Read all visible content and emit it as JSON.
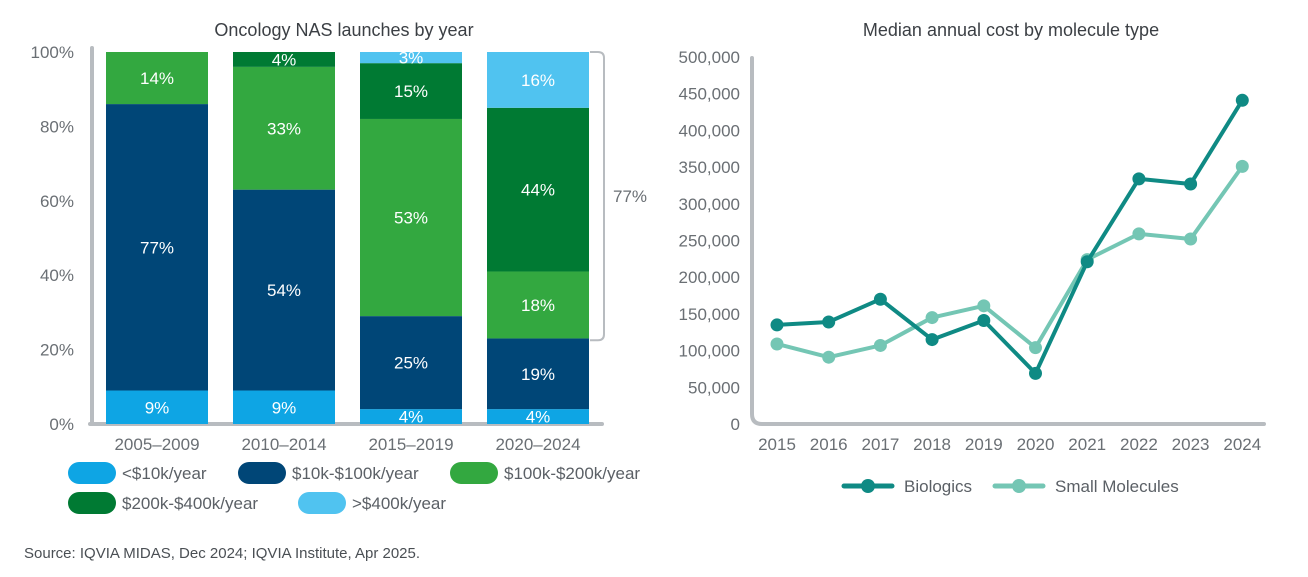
{
  "source_note": "Source: IQVIA MIDAS, Dec 2024; IQVIA Institute, Apr 2025.",
  "chart_data": [
    {
      "type": "bar",
      "stacked": true,
      "title": "Oncology NAS launches by year",
      "categories": [
        "2005–2009",
        "2010–2014",
        "2015–2019",
        "2020–2024"
      ],
      "ylim": [
        0,
        100
      ],
      "y_ticks": [
        "0%",
        "20%",
        "40%",
        "60%",
        "80%",
        "100%"
      ],
      "series": [
        {
          "name": "<$10k/year",
          "color": "#0ea5e4",
          "values": [
            9,
            9,
            4,
            4
          ],
          "labels": [
            "9%",
            "9%",
            "4%",
            "4%"
          ]
        },
        {
          "name": "$10k-$100k/year",
          "color": "#004677",
          "values": [
            77,
            54,
            25,
            19
          ],
          "labels": [
            "77%",
            "54%",
            "25%",
            "19%"
          ]
        },
        {
          "name": "$100k-$200k/year",
          "color": "#33a840",
          "values": [
            14,
            33,
            53,
            18
          ],
          "labels": [
            "14%",
            "33%",
            "53%",
            "18%"
          ]
        },
        {
          "name": "$200k-$400k/year",
          "color": "#007a33",
          "values": [
            0,
            4,
            15,
            44
          ],
          "labels": [
            "",
            "4%",
            "15%",
            "44%"
          ]
        },
        {
          "name": ">$400k/year",
          "color": "#50c3f0",
          "values": [
            0,
            0,
            3,
            16
          ],
          "labels": [
            "",
            "",
            "3%",
            "16%"
          ]
        }
      ],
      "bracket": {
        "category": "2020–2024",
        "from_value": 22.5,
        "to_value": 100,
        "label": "77%"
      },
      "legend": "bottom"
    },
    {
      "type": "line",
      "title": "Median annual cost by molecule type",
      "x": [
        "2015",
        "2016",
        "2017",
        "2018",
        "2019",
        "2020",
        "2021",
        "2022",
        "2023",
        "2024"
      ],
      "ylim": [
        0,
        500000
      ],
      "y_ticks": [
        "0",
        "50,000",
        "100,000",
        "150,000",
        "200,000",
        "250,000",
        "300,000",
        "350,000",
        "400,000",
        "450,000",
        "500,000"
      ],
      "series": [
        {
          "name": "Biologics",
          "color": "#0f8a84",
          "values": [
            135000,
            139000,
            170000,
            115000,
            141000,
            69000,
            221000,
            334000,
            327000,
            441000
          ]
        },
        {
          "name": "Small Molecules",
          "color": "#74c6b4",
          "values": [
            109000,
            91000,
            107000,
            145000,
            161000,
            104000,
            224000,
            259000,
            252000,
            351000
          ]
        }
      ],
      "legend": "bottom"
    }
  ]
}
